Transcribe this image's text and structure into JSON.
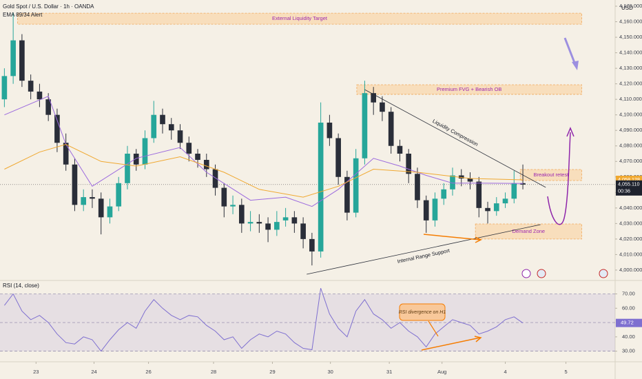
{
  "chart_data": {
    "type": "candlestick",
    "title": "Gold Spot / U.S. Dollar · 1h · OANDA",
    "indicator_label": "EMA 89/34 Alert",
    "currency": "USD",
    "xlim": [
      -0.5,
      69.5
    ],
    "xticks": [
      {
        "value": 3.6,
        "label": "23"
      },
      {
        "value": 10.2,
        "label": "24"
      },
      {
        "value": 16.4,
        "label": "26"
      },
      {
        "value": 23.8,
        "label": "28"
      },
      {
        "value": 30.5,
        "label": "29"
      },
      {
        "value": 37.1,
        "label": "30"
      },
      {
        "value": 43.8,
        "label": "31"
      },
      {
        "value": 49.8,
        "label": "Aug"
      },
      {
        "value": 57,
        "label": "4"
      },
      {
        "value": 63.9,
        "label": "5"
      }
    ],
    "ylim": [
      3994.2,
      4174
    ],
    "yticks": [
      {
        "value": 4000,
        "label": "4,000.000"
      },
      {
        "value": 4010,
        "label": "4,010.000"
      },
      {
        "value": 4020,
        "label": "4,020.000"
      },
      {
        "value": 4030,
        "label": "4,030.000"
      },
      {
        "value": 4040,
        "label": "4,040.000"
      },
      {
        "value": 4050,
        "label": "4,050.000"
      },
      {
        "value": 4060,
        "label": "4,060.000"
      },
      {
        "value": 4070,
        "label": "4,070.000"
      },
      {
        "value": 4080,
        "label": "4,080.000"
      },
      {
        "value": 4090,
        "label": "4,090.000"
      },
      {
        "value": 4100,
        "label": "4,100.000"
      },
      {
        "value": 4110,
        "label": "4,110.000"
      },
      {
        "value": 4120,
        "label": "4,120.000"
      },
      {
        "value": 4130,
        "label": "4,130.000"
      },
      {
        "value": 4140,
        "label": "4,140.000"
      },
      {
        "value": 4150,
        "label": "4,150.000"
      },
      {
        "value": 4160,
        "label": "4,160.000"
      },
      {
        "value": 4170,
        "label": "4,170.000"
      }
    ],
    "up_color": "#26a69a",
    "down_color": "#2a2e39",
    "open": [
      4110,
      4125,
      4148,
      4122,
      4115,
      4110,
      4100,
      4082,
      4068,
      4042,
      4047,
      4046,
      4034,
      4041,
      4056,
      4075,
      4068,
      4085,
      4100,
      4094,
      4090,
      4082,
      4075,
      4071,
      4065,
      4053,
      4041,
      4042,
      4030,
      4031,
      4030,
      4026,
      4032,
      4034,
      4030,
      4020,
      4012,
      4095,
      4085,
      4060,
      4037,
      4072,
      4114,
      4108,
      4102,
      4080,
      4075,
      4062,
      4045,
      4032,
      4046,
      4052,
      4061,
      4059,
      4057,
      4040,
      4038,
      4043,
      4046,
      4056
    ],
    "high": [
      4130,
      4166,
      4152,
      4126,
      4120,
      4114,
      4104,
      4088,
      4072,
      4052,
      4052,
      4050,
      4046,
      4060,
      4080,
      4078,
      4090,
      4109,
      4104,
      4098,
      4094,
      4086,
      4078,
      4075,
      4068,
      4056,
      4048,
      4046,
      4038,
      4036,
      4034,
      4038,
      4040,
      4038,
      4034,
      4024,
      4108,
      4100,
      4088,
      4064,
      4078,
      4122,
      4118,
      4112,
      4105,
      4084,
      4078,
      4066,
      4048,
      4050,
      4056,
      4066,
      4065,
      4063,
      4060,
      4044,
      4047,
      4050,
      4064,
      4068
    ],
    "low": [
      4105,
      4120,
      4118,
      4110,
      4105,
      4096,
      4076,
      4064,
      4038,
      4038,
      4040,
      4023,
      4030,
      4038,
      4052,
      4064,
      4065,
      4082,
      4088,
      4084,
      4078,
      4070,
      4066,
      4060,
      4048,
      4034,
      4036,
      4024,
      4025,
      4024,
      4018,
      4022,
      4028,
      4024,
      4014,
      4003,
      4008,
      4080,
      4055,
      4032,
      4034,
      4068,
      4100,
      4096,
      4075,
      4070,
      4056,
      4040,
      4024,
      4028,
      4042,
      4048,
      4054,
      4052,
      4034,
      4030,
      4035,
      4040,
      4043,
      4052
    ],
    "close": [
      4125,
      4148,
      4122,
      4115,
      4110,
      4100,
      4082,
      4068,
      4042,
      4047,
      4046,
      4034,
      4041,
      4056,
      4075,
      4068,
      4085,
      4100,
      4094,
      4090,
      4082,
      4075,
      4071,
      4065,
      4053,
      4041,
      4042,
      4030,
      4031,
      4030,
      4026,
      4031,
      4034,
      4030,
      4020,
      4012,
      4095,
      4085,
      4060,
      4037,
      4072,
      4114,
      4108,
      4102,
      4080,
      4075,
      4062,
      4045,
      4032,
      4046,
      4052,
      4061,
      4059,
      4057,
      4040,
      4038,
      4043,
      4046,
      4056,
      4055.11
    ],
    "close_label": "4,055.110",
    "countdown": "00:36",
    "ema_lines": [
      {
        "color": "#9c6ade",
        "x": [
          0,
          5,
          7,
          10,
          15,
          20,
          23,
          28,
          32,
          35,
          38,
          42,
          45,
          48,
          51,
          54,
          59
        ],
        "values": [
          4100,
          4112,
          4081,
          4054,
          4072,
          4079,
          4063,
          4045,
          4047,
          4041,
          4052,
          4072,
          4067,
          4061,
          4056,
          4056,
          4055.799
        ],
        "last_label": "4,055.799"
      },
      {
        "color": "#f0a830",
        "x": [
          0,
          4,
          7,
          11,
          15,
          20,
          25,
          29,
          34,
          38,
          42,
          47,
          53,
          59
        ],
        "values": [
          4065,
          4076,
          4081,
          4070,
          4067,
          4073,
          4063,
          4052,
          4047,
          4054,
          4065,
          4063,
          4059,
          4058.128
        ],
        "last_label": "4,058.128"
      }
    ],
    "zones": [
      {
        "label": "External Liquidity Target",
        "xlim": [
          1.5,
          65.7
        ],
        "ylim": [
          4158.4,
          4165.5
        ]
      },
      {
        "label": "Premium FVG + Bearish OB",
        "xlim": [
          40.1,
          65.7
        ],
        "ylim": [
          4113.2,
          4119.4
        ]
      },
      {
        "label": "Breakout retest",
        "xlim": [
          58.7,
          65.7
        ],
        "ylim": [
          4057.7,
          4064.8
        ]
      },
      {
        "label": "Demand Zone",
        "xlim": [
          53.6,
          65.7
        ],
        "ylim": [
          4020,
          4029.7
        ]
      }
    ],
    "trendlines": [
      {
        "label": "Liquidity Compression",
        "x": [
          41,
          61.6
        ],
        "y": [
          4116.3,
          4053.3
        ]
      },
      {
        "label": "Internal Range Support",
        "x": [
          34.4,
          61
        ],
        "y": [
          3997.3,
          4029.3
        ]
      }
    ],
    "rsi": {
      "title": "RSI (14, close)",
      "color": "#7e6fd0",
      "ylim": [
        25,
        77
      ],
      "band": [
        30,
        70
      ],
      "midline": 50,
      "yticks": [
        {
          "value": 30,
          "label": "30.00"
        },
        {
          "value": 40,
          "label": "40.00"
        },
        {
          "value": 60,
          "label": "60.00"
        },
        {
          "value": 70,
          "label": "70.00"
        }
      ],
      "values": [
        62,
        70,
        58,
        52,
        55,
        50,
        42,
        36,
        35,
        40,
        38,
        30,
        38,
        45,
        50,
        46,
        58,
        66,
        60,
        55,
        52,
        55,
        54,
        48,
        44,
        38,
        40,
        32,
        38,
        42,
        40,
        44,
        42,
        36,
        32,
        31,
        74,
        56,
        46,
        40,
        58,
        66,
        56,
        52,
        46,
        50,
        44,
        40,
        33,
        42,
        47,
        52,
        50,
        48,
        42,
        44,
        47,
        52,
        54,
        49.72
      ],
      "annotation": "RSI divergence on H1"
    }
  }
}
